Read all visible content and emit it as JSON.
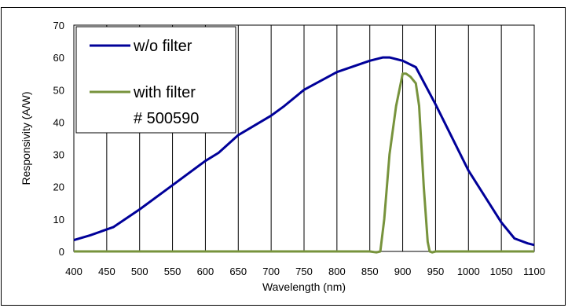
{
  "caption": "",
  "chart_data": {
    "type": "line",
    "title": "",
    "xlabel": "Wavelength (nm)",
    "ylabel": "Responsivity (A/W)",
    "xlim": [
      400,
      1100
    ],
    "ylim": [
      0,
      70
    ],
    "xticks": [
      400,
      450,
      500,
      550,
      600,
      650,
      700,
      750,
      800,
      850,
      900,
      950,
      1000,
      1050,
      1100
    ],
    "yticks": [
      0,
      10,
      20,
      30,
      40,
      50,
      60,
      70
    ],
    "grid": "vertical",
    "legend_position": "top-left",
    "series": [
      {
        "name": "w/o filter",
        "color": "#000099",
        "x": [
          400,
          425,
          460,
          500,
          550,
          600,
          620,
          650,
          700,
          720,
          750,
          800,
          850,
          870,
          880,
          900,
          920,
          950,
          1000,
          1050,
          1070,
          1090,
          1100
        ],
        "y": [
          3.5,
          5,
          7.5,
          13,
          20.5,
          28,
          30.5,
          36,
          42,
          45,
          50,
          55.5,
          59,
          60,
          60,
          59,
          57,
          45.5,
          25,
          9,
          4,
          2.5,
          2
        ]
      },
      {
        "name": "with filter\n# 500590",
        "legend_lines": [
          "with filter",
          "# 500590"
        ],
        "color": "#77933c",
        "x": [
          400,
          850,
          860,
          866,
          872,
          880,
          890,
          900,
          905,
          912,
          920,
          925,
          932,
          938,
          941,
          945,
          950,
          960,
          1100
        ],
        "y": [
          0,
          0,
          -0.3,
          0,
          10,
          30,
          45,
          55,
          55,
          54,
          52,
          45,
          20,
          3,
          0,
          -0.3,
          0,
          0,
          0
        ]
      }
    ]
  }
}
